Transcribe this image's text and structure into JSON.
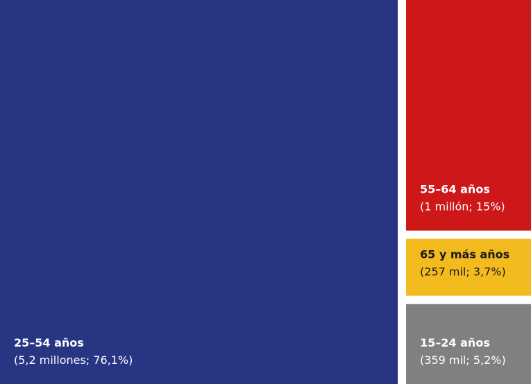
{
  "chart_data": {
    "type": "treemap",
    "categories": [
      "25–54 años",
      "55–64 años",
      "65 y más años",
      "15–24 años"
    ],
    "values": [
      76.1,
      15,
      3.7,
      5.2
    ],
    "value_labels": [
      "(5,2 millones; 76,1%)",
      "(1 millón; 15%)",
      "(257 mil; 3,7%)",
      "(359 mil; 5,2%)"
    ],
    "colors": [
      "#283583",
      "#cd1719",
      "#f4bb1f",
      "#808080"
    ]
  }
}
